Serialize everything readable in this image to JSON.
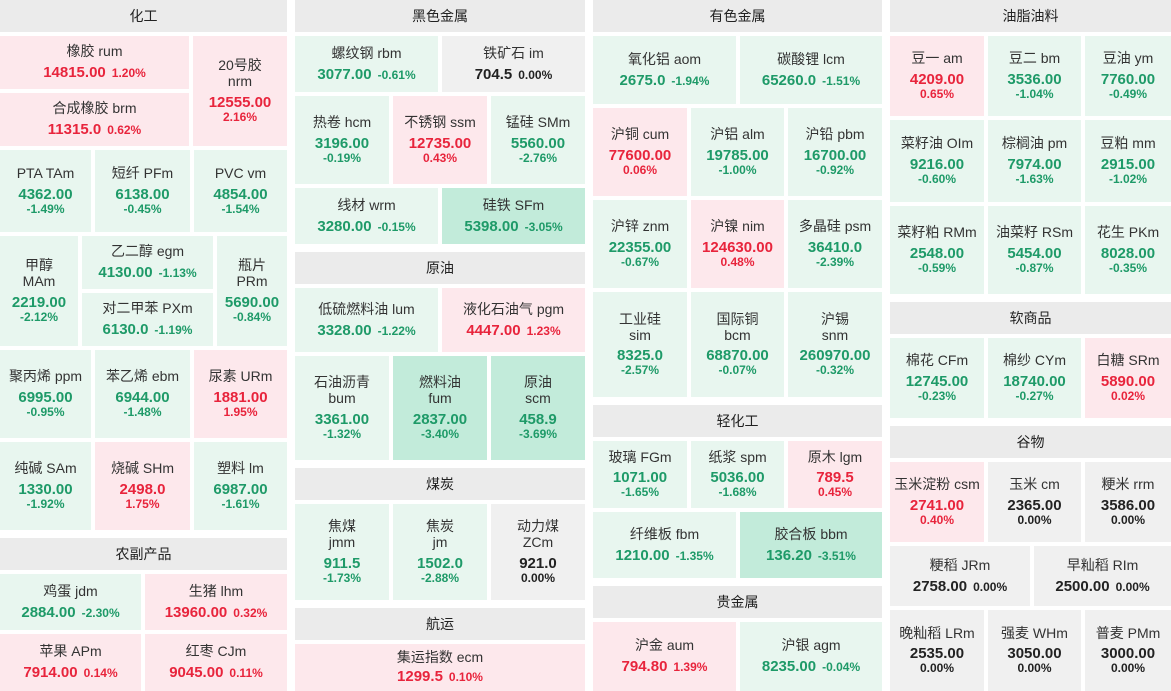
{
  "colors": {
    "down": "#1e9a68",
    "up": "#e8243c",
    "flat": "#222222"
  },
  "sections": {
    "huagong": "化工",
    "heise": "黑色金属",
    "yousu": "有色金属",
    "youzhi": "油脂油料",
    "nongfu": "农副产品",
    "yuanyou": "原油",
    "meitan": "煤炭",
    "hangyun": "航运",
    "qinghua": "轻化工",
    "guijinshu": "贵金属",
    "ruanshangpin": "软商品",
    "guwu": "谷物"
  },
  "tiles": {
    "rum": {
      "name": "橡胶  rum",
      "price": "14815.00",
      "change": "1.20%"
    },
    "nrm": {
      "name": "20号胶\nnrm",
      "price": "12555.00",
      "change": "2.16%"
    },
    "brm": {
      "name": "合成橡胶  brm",
      "price": "11315.0",
      "change": "0.62%"
    },
    "tam": {
      "name": "PTA  TAm",
      "price": "4362.00",
      "change": "-1.49%"
    },
    "pfm": {
      "name": "短纤  PFm",
      "price": "6138.00",
      "change": "-0.45%"
    },
    "vm": {
      "name": "PVC  vm",
      "price": "4854.00",
      "change": "-1.54%"
    },
    "mam": {
      "name": "甲醇\nMAm",
      "price": "2219.00",
      "change": "-2.12%"
    },
    "egm": {
      "name": "乙二醇  egm",
      "price": "4130.00",
      "change": "-1.13%"
    },
    "prm": {
      "name": "瓶片\nPRm",
      "price": "5690.00",
      "change": "-0.84%"
    },
    "pxm": {
      "name": "对二甲苯  PXm",
      "price": "6130.0",
      "change": "-1.19%"
    },
    "ppm": {
      "name": "聚丙烯  ppm",
      "price": "6995.00",
      "change": "-0.95%"
    },
    "ebm": {
      "name": "苯乙烯  ebm",
      "price": "6944.00",
      "change": "-1.48%"
    },
    "urm": {
      "name": "尿素  URm",
      "price": "1881.00",
      "change": "1.95%"
    },
    "sam": {
      "name": "纯碱  SAm",
      "price": "1330.00",
      "change": "-1.92%"
    },
    "shm": {
      "name": "烧碱  SHm",
      "price": "2498.0",
      "change": "1.75%"
    },
    "lm": {
      "name": "塑料  lm",
      "price": "6987.00",
      "change": "-1.61%"
    },
    "jdm": {
      "name": "鸡蛋  jdm",
      "price": "2884.00",
      "change": "-2.30%"
    },
    "lhm": {
      "name": "生猪  lhm",
      "price": "13960.00",
      "change": "0.32%"
    },
    "apm": {
      "name": "苹果  APm",
      "price": "7914.00",
      "change": "0.14%"
    },
    "cjm": {
      "name": "红枣  CJm",
      "price": "9045.00",
      "change": "0.11%"
    },
    "rbm": {
      "name": "螺纹钢  rbm",
      "price": "3077.00",
      "change": "-0.61%"
    },
    "im": {
      "name": "铁矿石  im",
      "price": "704.5",
      "change": "0.00%"
    },
    "hcm": {
      "name": "热卷  hcm",
      "price": "3196.00",
      "change": "-0.19%"
    },
    "ssm": {
      "name": "不锈钢  ssm",
      "price": "12735.00",
      "change": "0.43%"
    },
    "smm": {
      "name": "锰硅  SMm",
      "price": "5560.00",
      "change": "-2.76%"
    },
    "wrm": {
      "name": "线材  wrm",
      "price": "3280.00",
      "change": "-0.15%"
    },
    "sfm": {
      "name": "硅铁  SFm",
      "price": "5398.00",
      "change": "-3.05%"
    },
    "lum": {
      "name": "低硫燃料油  lum",
      "price": "3328.00",
      "change": "-1.22%"
    },
    "pgm": {
      "name": "液化石油气  pgm",
      "price": "4447.00",
      "change": "1.23%"
    },
    "bum": {
      "name": "石油沥青\nbum",
      "price": "3361.00",
      "change": "-1.32%"
    },
    "fum": {
      "name": "燃料油\nfum",
      "price": "2837.00",
      "change": "-3.40%"
    },
    "scm": {
      "name": "原油\nscm",
      "price": "458.9",
      "change": "-3.69%"
    },
    "jmm": {
      "name": "焦煤\njmm",
      "price": "911.5",
      "change": "-1.73%"
    },
    "jm": {
      "name": "焦炭\njm",
      "price": "1502.0",
      "change": "-2.88%"
    },
    "zcm": {
      "name": "动力煤\nZCm",
      "price": "921.0",
      "change": "0.00%"
    },
    "ecm": {
      "name": "集运指数  ecm",
      "price": "1299.5",
      "change": "0.10%"
    },
    "aom": {
      "name": "氧化铝  aom",
      "price": "2675.0",
      "change": "-1.94%"
    },
    "lcm": {
      "name": "碳酸锂  lcm",
      "price": "65260.0",
      "change": "-1.51%"
    },
    "cum": {
      "name": "沪铜  cum",
      "price": "77600.00",
      "change": "0.06%"
    },
    "alm": {
      "name": "沪铝  alm",
      "price": "19785.00",
      "change": "-1.00%"
    },
    "pbm": {
      "name": "沪铅  pbm",
      "price": "16700.00",
      "change": "-0.92%"
    },
    "znm": {
      "name": "沪锌  znm",
      "price": "22355.00",
      "change": "-0.67%"
    },
    "nim": {
      "name": "沪镍  nim",
      "price": "124630.00",
      "change": "0.48%"
    },
    "psm": {
      "name": "多晶硅  psm",
      "price": "36410.0",
      "change": "-2.39%"
    },
    "sim": {
      "name": "工业硅\nsim",
      "price": "8325.0",
      "change": "-2.57%"
    },
    "bcm": {
      "name": "国际铜\nbcm",
      "price": "68870.00",
      "change": "-0.07%"
    },
    "snm": {
      "name": "沪锡\nsnm",
      "price": "260970.00",
      "change": "-0.32%"
    },
    "fgm": {
      "name": "玻璃  FGm",
      "price": "1071.00",
      "change": "-1.65%"
    },
    "spm": {
      "name": "纸浆  spm",
      "price": "5036.00",
      "change": "-1.68%"
    },
    "lgm": {
      "name": "原木  lgm",
      "price": "789.5",
      "change": "0.45%"
    },
    "fbm": {
      "name": "纤维板  fbm",
      "price": "1210.00",
      "change": "-1.35%"
    },
    "bbm": {
      "name": "胶合板  bbm",
      "price": "136.20",
      "change": "-3.51%"
    },
    "aum": {
      "name": "沪金  aum",
      "price": "794.80",
      "change": "1.39%"
    },
    "agm": {
      "name": "沪银  agm",
      "price": "8235.00",
      "change": "-0.04%"
    },
    "am": {
      "name": "豆一  am",
      "price": "4209.00",
      "change": "0.65%"
    },
    "bm": {
      "name": "豆二  bm",
      "price": "3536.00",
      "change": "-1.04%"
    },
    "ym": {
      "name": "豆油  ym",
      "price": "7760.00",
      "change": "-0.49%"
    },
    "oim": {
      "name": "菜籽油  OIm",
      "price": "9216.00",
      "change": "-0.60%"
    },
    "pm": {
      "name": "棕榈油  pm",
      "price": "7974.00",
      "change": "-1.63%"
    },
    "mm": {
      "name": "豆粕  mm",
      "price": "2915.00",
      "change": "-1.02%"
    },
    "rmm": {
      "name": "菜籽粕  RMm",
      "price": "2548.00",
      "change": "-0.59%"
    },
    "rsm": {
      "name": "油菜籽  RSm",
      "price": "5454.00",
      "change": "-0.87%"
    },
    "pkm": {
      "name": "花生  PKm",
      "price": "8028.00",
      "change": "-0.35%"
    },
    "cfm": {
      "name": "棉花  CFm",
      "price": "12745.00",
      "change": "-0.23%"
    },
    "cym": {
      "name": "棉纱  CYm",
      "price": "18740.00",
      "change": "-0.27%"
    },
    "srm": {
      "name": "白糖  SRm",
      "price": "5890.00",
      "change": "0.02%"
    },
    "csm": {
      "name": "玉米淀粉  csm",
      "price": "2741.00",
      "change": "0.40%"
    },
    "cm": {
      "name": "玉米  cm",
      "price": "2365.00",
      "change": "0.00%"
    },
    "rrm": {
      "name": "粳米  rrm",
      "price": "3586.00",
      "change": "0.00%"
    },
    "jrm": {
      "name": "粳稻  JRm",
      "price": "2758.00",
      "change": "0.00%"
    },
    "rim": {
      "name": "早籼稻  RIm",
      "price": "2500.00",
      "change": "0.00%"
    },
    "lrm": {
      "name": "晚籼稻  LRm",
      "price": "2535.00",
      "change": "0.00%"
    },
    "whm": {
      "name": "强麦  WHm",
      "price": "3050.00",
      "change": "0.00%"
    },
    "pmm": {
      "name": "普麦  PMm",
      "price": "3000.00",
      "change": "0.00%"
    }
  }
}
